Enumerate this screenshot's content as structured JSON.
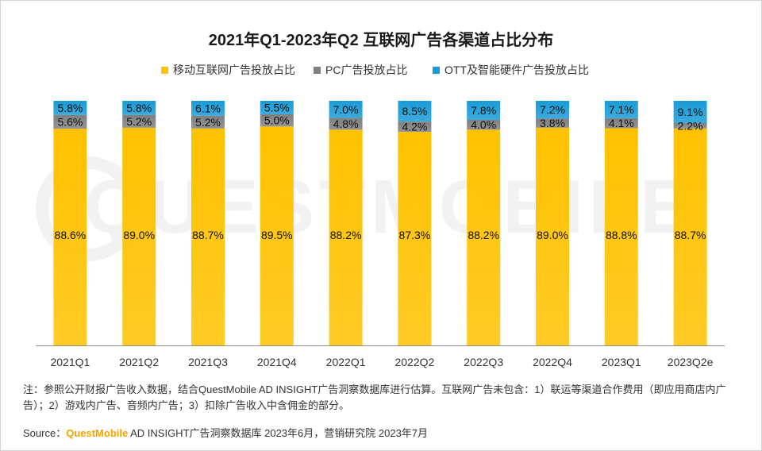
{
  "chart_data": {
    "type": "bar",
    "stacked": true,
    "title": "2021年Q1-2023年Q2 互联网广告各渠道占比分布",
    "categories": [
      "2021Q1",
      "2021Q2",
      "2021Q3",
      "2021Q4",
      "2022Q1",
      "2022Q2",
      "2022Q3",
      "2022Q4",
      "2023Q1",
      "2023Q2e"
    ],
    "series": [
      {
        "name": "移动互联网广告投放占比",
        "color": "#ffc200",
        "values": [
          88.6,
          89.0,
          88.7,
          89.5,
          88.2,
          87.3,
          88.2,
          89.0,
          88.8,
          88.7
        ],
        "labels": [
          "88.6%",
          "89.0%",
          "88.7%",
          "89.5%",
          "88.2%",
          "87.3%",
          "88.2%",
          "89.0%",
          "88.8%",
          "88.7%"
        ]
      },
      {
        "name": "PC广告投放占比",
        "color": "#808080",
        "values": [
          5.6,
          5.2,
          5.2,
          5.0,
          4.8,
          4.2,
          4.0,
          3.8,
          4.1,
          2.2
        ],
        "labels": [
          "5.6%",
          "5.2%",
          "5.2%",
          "5.0%",
          "4.8%",
          "4.2%",
          "4.0%",
          "3.8%",
          "4.1%",
          "2.2%"
        ]
      },
      {
        "name": "OTT及智能硬件广告投放占比",
        "color": "#1a9bd7",
        "values": [
          5.8,
          5.8,
          6.1,
          5.5,
          7.0,
          8.5,
          7.8,
          7.2,
          7.1,
          9.1
        ],
        "labels": [
          "5.8%",
          "5.8%",
          "6.1%",
          "5.5%",
          "7.0%",
          "8.5%",
          "7.8%",
          "7.2%",
          "7.1%",
          "9.1%"
        ]
      }
    ],
    "ylim": [
      0,
      100
    ],
    "xlabel": "",
    "ylabel": "",
    "legend_position": "top"
  },
  "watermark": "QUESTMOBILE",
  "note": "注：参照公开财报广告收入数据，结合QuestMobile AD INSIGHT广告洞察数据库进行估算。互联网广告未包含：1）联运等渠道合作费用（即应用商店内广告）；2）游戏内广告、音频内广告；3）扣除广告收入中含佣金的部分。",
  "source": {
    "prefix": "Source：",
    "brand": "QuestMobile",
    "rest": " AD INSIGHT广告洞察数据库 2023年6月，营销研究院 2023年7月"
  }
}
